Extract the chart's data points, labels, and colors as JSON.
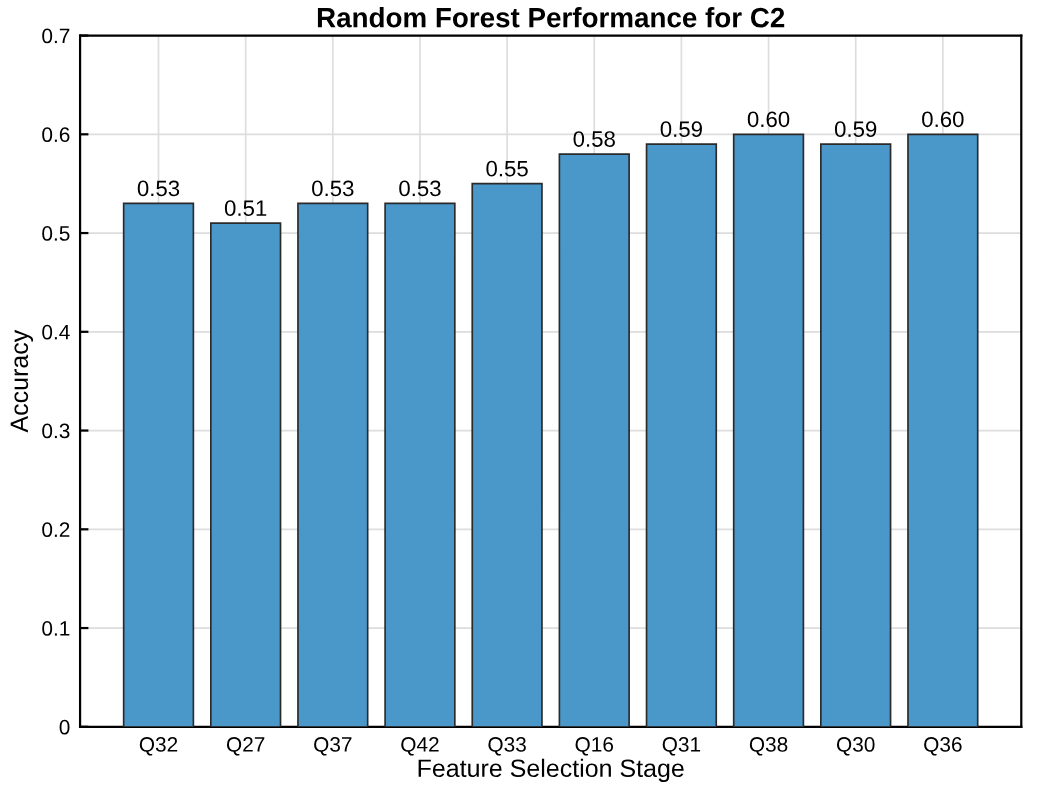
{
  "chart_data": {
    "type": "bar",
    "title": "Random Forest Performance for C2",
    "xlabel": "Feature Selection Stage",
    "ylabel": "Accuracy",
    "categories": [
      "Q32",
      "Q27",
      "Q37",
      "Q42",
      "Q33",
      "Q16",
      "Q31",
      "Q38",
      "Q30",
      "Q36"
    ],
    "values": [
      0.53,
      0.51,
      0.53,
      0.53,
      0.55,
      0.58,
      0.59,
      0.6,
      0.59,
      0.6
    ],
    "value_labels": [
      "0.53",
      "0.51",
      "0.53",
      "0.53",
      "0.55",
      "0.58",
      "0.59",
      "0.60",
      "0.59",
      "0.60"
    ],
    "color": "#4a98c9",
    "ylim": [
      0,
      0.7
    ],
    "yticks": [
      0,
      0.1,
      0.2,
      0.3,
      0.4,
      0.5,
      0.6,
      0.7
    ],
    "grid": true
  }
}
